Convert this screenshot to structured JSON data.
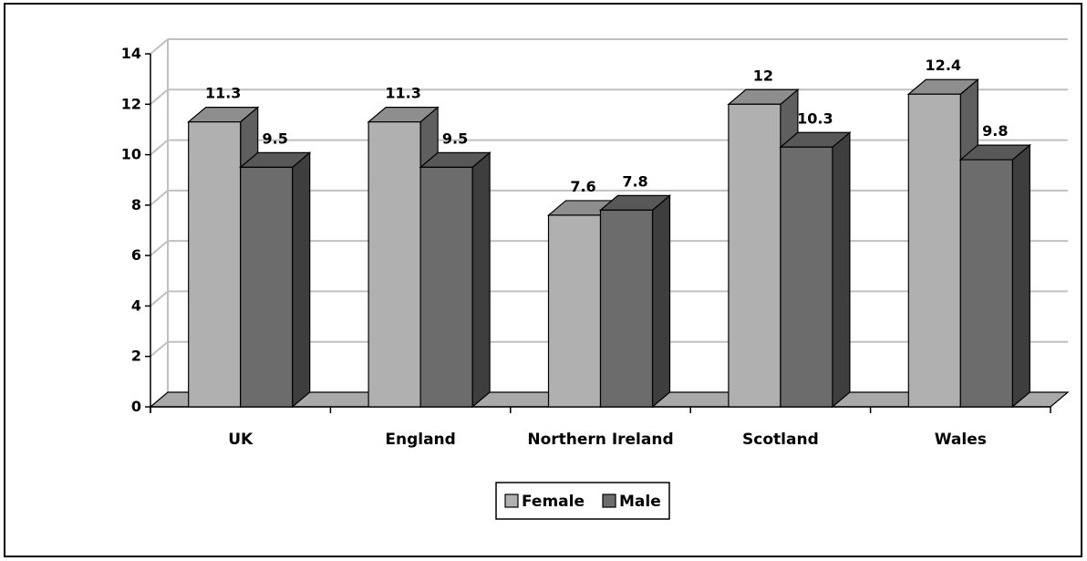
{
  "chart_data": {
    "type": "bar",
    "categories": [
      "UK",
      "England",
      "Northern Ireland",
      "Scotland",
      "Wales"
    ],
    "series": [
      {
        "name": "Female",
        "values": [
          11.3,
          11.3,
          7.6,
          12,
          12.4
        ],
        "labels": [
          "11.3",
          "11.3",
          "7.6",
          "12",
          "12.4"
        ]
      },
      {
        "name": "Male",
        "values": [
          9.5,
          9.5,
          7.8,
          10.3,
          9.8
        ],
        "labels": [
          "9.5",
          "9.5",
          "7.8",
          "10.3",
          "9.8"
        ]
      }
    ],
    "ylim": [
      0,
      14
    ],
    "yticks": [
      "0",
      "2",
      "4",
      "6",
      "8",
      "10",
      "12",
      "14"
    ],
    "grid": true,
    "legend_position": "bottom",
    "three_d": true,
    "colors": {
      "female_front": "#b0b0b0",
      "female_top": "#8e8e8e",
      "female_side": "#5f5f5f",
      "male_front": "#6c6c6c",
      "male_top": "#585858",
      "male_side": "#3e3e3e",
      "grid": "#c0c0c0",
      "floor": "#a9a9a9"
    }
  }
}
